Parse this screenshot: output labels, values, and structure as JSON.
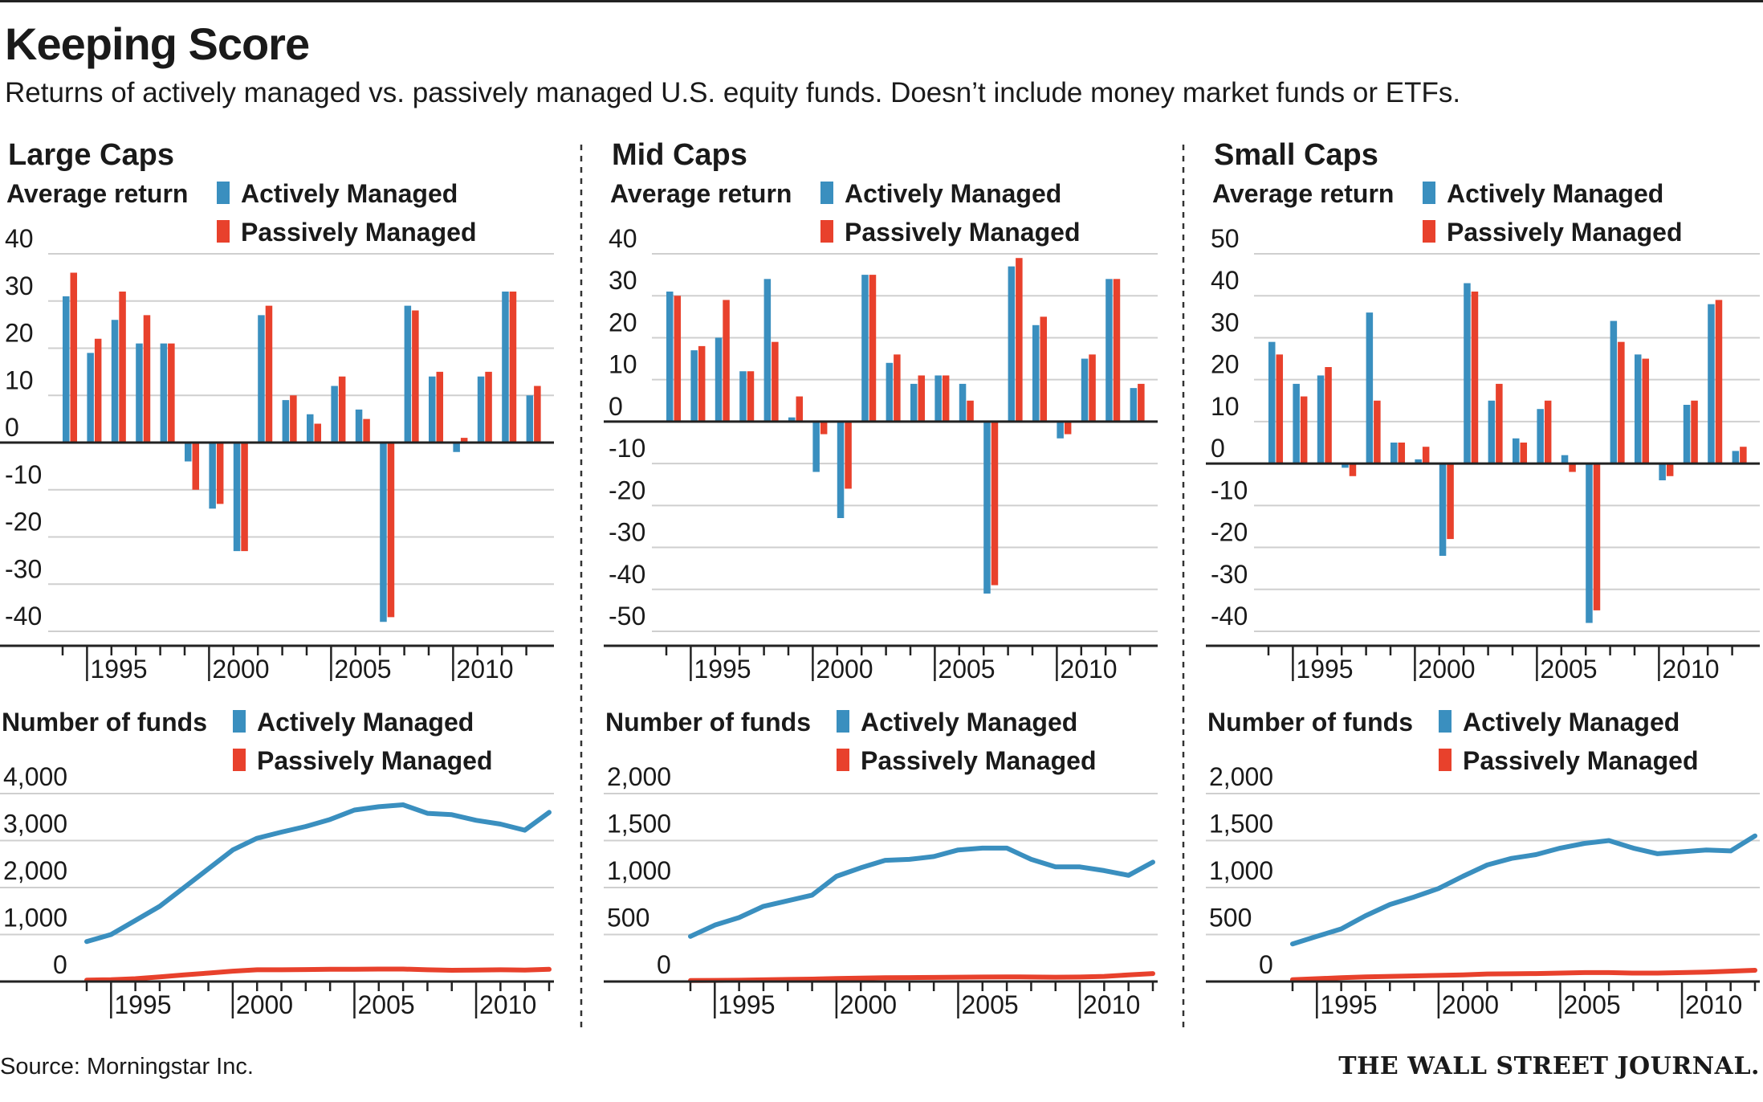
{
  "title": "Keeping Score",
  "subtitle": "Returns of actively managed vs. passively managed U.S. equity funds. Doesn’t include money market funds or ETFs.",
  "source": "Source: Morningstar Inc.",
  "brand": "THE WALL STREET JOURNAL.",
  "colors": {
    "active": "#3a8fbf",
    "passive": "#e8412c",
    "grid": "#cfcfcf",
    "axis": "#222222"
  },
  "chart_data": [
    {
      "panel": "Large Caps",
      "type": "bar",
      "subtitle": "Average return",
      "legend": [
        "Actively Managed",
        "Passively Managed"
      ],
      "x": [
        1994,
        1995,
        1996,
        1997,
        1998,
        1999,
        2000,
        2001,
        2002,
        2003,
        2004,
        2005,
        2006,
        2007,
        2008,
        2009,
        2010,
        2011,
        2012,
        2013
      ],
      "series": [
        {
          "name": "Actively Managed",
          "values": [
            31,
            19,
            26,
            21,
            21,
            -4,
            -14,
            -23,
            27,
            9,
            6,
            12,
            7,
            -38,
            29,
            14,
            -2,
            14,
            32,
            10
          ]
        },
        {
          "name": "Passively Managed",
          "values": [
            36,
            22,
            32,
            27,
            21,
            -10,
            -13,
            -23,
            29,
            10,
            4,
            14,
            5,
            -37,
            28,
            15,
            1,
            15,
            32,
            12
          ]
        }
      ],
      "yticks": [
        40,
        30,
        20,
        10,
        0,
        -10,
        -20,
        -30,
        -40
      ],
      "ylim": [
        -40,
        40
      ],
      "xticks": [
        1995,
        2000,
        2005,
        2010
      ]
    },
    {
      "panel": "Mid Caps",
      "type": "bar",
      "subtitle": "Average return",
      "legend": [
        "Actively Managed",
        "Passively Managed"
      ],
      "x": [
        1994,
        1995,
        1996,
        1997,
        1998,
        1999,
        2000,
        2001,
        2002,
        2003,
        2004,
        2005,
        2006,
        2007,
        2008,
        2009,
        2010,
        2011,
        2012,
        2013
      ],
      "series": [
        {
          "name": "Actively Managed",
          "values": [
            31,
            17,
            20,
            12,
            34,
            1,
            -12,
            -23,
            35,
            14,
            9,
            11,
            9,
            -41,
            37,
            23,
            -4,
            15,
            34,
            8
          ]
        },
        {
          "name": "Passively Managed",
          "values": [
            30,
            18,
            29,
            12,
            19,
            6,
            -3,
            -16,
            35,
            16,
            11,
            11,
            5,
            -39,
            39,
            25,
            -3,
            16,
            34,
            9
          ]
        }
      ],
      "yticks": [
        40,
        30,
        20,
        10,
        0,
        -10,
        -20,
        -30,
        -40,
        -50
      ],
      "ylim": [
        -50,
        40
      ],
      "xticks": [
        1995,
        2000,
        2005,
        2010
      ]
    },
    {
      "panel": "Small Caps",
      "type": "bar",
      "subtitle": "Average return",
      "legend": [
        "Actively Managed",
        "Passively Managed"
      ],
      "x": [
        1994,
        1995,
        1996,
        1997,
        1998,
        1999,
        2000,
        2001,
        2002,
        2003,
        2004,
        2005,
        2006,
        2007,
        2008,
        2009,
        2010,
        2011,
        2012,
        2013
      ],
      "series": [
        {
          "name": "Actively Managed",
          "values": [
            29,
            19,
            21,
            -1,
            36,
            5,
            1,
            -22,
            43,
            15,
            6,
            13,
            2,
            -38,
            34,
            26,
            -4,
            14,
            38,
            3
          ]
        },
        {
          "name": "Passively Managed",
          "values": [
            26,
            16,
            23,
            -3,
            15,
            5,
            4,
            -18,
            41,
            19,
            5,
            15,
            -2,
            -35,
            29,
            25,
            -3,
            15,
            39,
            4
          ]
        }
      ],
      "yticks": [
        50,
        40,
        30,
        20,
        10,
        0,
        -10,
        -20,
        -30,
        -40
      ],
      "ylim": [
        -40,
        50
      ],
      "xticks": [
        1995,
        2000,
        2005,
        2010
      ]
    },
    {
      "panel": "Large Caps",
      "type": "line",
      "subtitle": "Number of funds",
      "legend": [
        "Actively Managed",
        "Passively Managed"
      ],
      "x": [
        1994,
        1995,
        1996,
        1997,
        1998,
        1999,
        2000,
        2001,
        2002,
        2003,
        2004,
        2005,
        2006,
        2007,
        2008,
        2009,
        2010,
        2011,
        2012,
        2013
      ],
      "series": [
        {
          "name": "Actively Managed",
          "values": [
            850,
            1000,
            1300,
            1600,
            2000,
            2400,
            2800,
            3050,
            3180,
            3300,
            3450,
            3650,
            3720,
            3760,
            3580,
            3550,
            3430,
            3350,
            3220,
            3600
          ]
        },
        {
          "name": "Passively Managed",
          "values": [
            30,
            40,
            60,
            100,
            140,
            180,
            220,
            250,
            250,
            255,
            260,
            260,
            265,
            265,
            250,
            240,
            245,
            250,
            245,
            260
          ]
        }
      ],
      "yticks": [
        4000,
        3000,
        2000,
        1000,
        0
      ],
      "ytick_labels": [
        "4,000",
        "3,000",
        "2,000",
        "1,000",
        "0"
      ],
      "ylim": [
        0,
        4000
      ],
      "xticks": [
        1995,
        2000,
        2005,
        2010
      ]
    },
    {
      "panel": "Mid Caps",
      "type": "line",
      "subtitle": "Number of funds",
      "legend": [
        "Actively Managed",
        "Passively Managed"
      ],
      "x": [
        1994,
        1995,
        1996,
        1997,
        1998,
        1999,
        2000,
        2001,
        2002,
        2003,
        2004,
        2005,
        2006,
        2007,
        2008,
        2009,
        2010,
        2011,
        2012,
        2013
      ],
      "series": [
        {
          "name": "Actively Managed",
          "values": [
            480,
            600,
            680,
            800,
            860,
            920,
            1120,
            1210,
            1290,
            1300,
            1330,
            1400,
            1420,
            1420,
            1300,
            1220,
            1220,
            1180,
            1130,
            1270
          ]
        },
        {
          "name": "Passively Managed",
          "values": [
            10,
            12,
            14,
            18,
            22,
            26,
            32,
            36,
            40,
            42,
            44,
            46,
            48,
            50,
            48,
            46,
            48,
            55,
            70,
            85
          ]
        }
      ],
      "yticks": [
        2000,
        1500,
        1000,
        500,
        0
      ],
      "ytick_labels": [
        "2,000",
        "1,500",
        "1,000",
        "500",
        "0"
      ],
      "ylim": [
        0,
        2000
      ],
      "xticks": [
        1995,
        2000,
        2005,
        2010
      ]
    },
    {
      "panel": "Small Caps",
      "type": "line",
      "subtitle": "Number of funds",
      "legend": [
        "Actively Managed",
        "Passively Managed"
      ],
      "x": [
        1994,
        1995,
        1996,
        1997,
        1998,
        1999,
        2000,
        2001,
        2002,
        2003,
        2004,
        2005,
        2006,
        2007,
        2008,
        2009,
        2010,
        2011,
        2012,
        2013
      ],
      "series": [
        {
          "name": "Actively Managed",
          "values": [
            400,
            480,
            560,
            700,
            820,
            900,
            990,
            1120,
            1240,
            1310,
            1350,
            1420,
            1470,
            1500,
            1420,
            1360,
            1380,
            1400,
            1390,
            1550
          ]
        },
        {
          "name": "Passively Managed",
          "values": [
            20,
            30,
            40,
            50,
            55,
            60,
            65,
            70,
            80,
            82,
            85,
            90,
            95,
            95,
            90,
            90,
            95,
            100,
            110,
            120
          ]
        }
      ],
      "yticks": [
        2000,
        1500,
        1000,
        500,
        0
      ],
      "ytick_labels": [
        "2,000",
        "1,500",
        "1,000",
        "500",
        "0"
      ],
      "ylim": [
        0,
        2000
      ],
      "xticks": [
        1995,
        2000,
        2005,
        2010
      ]
    }
  ]
}
